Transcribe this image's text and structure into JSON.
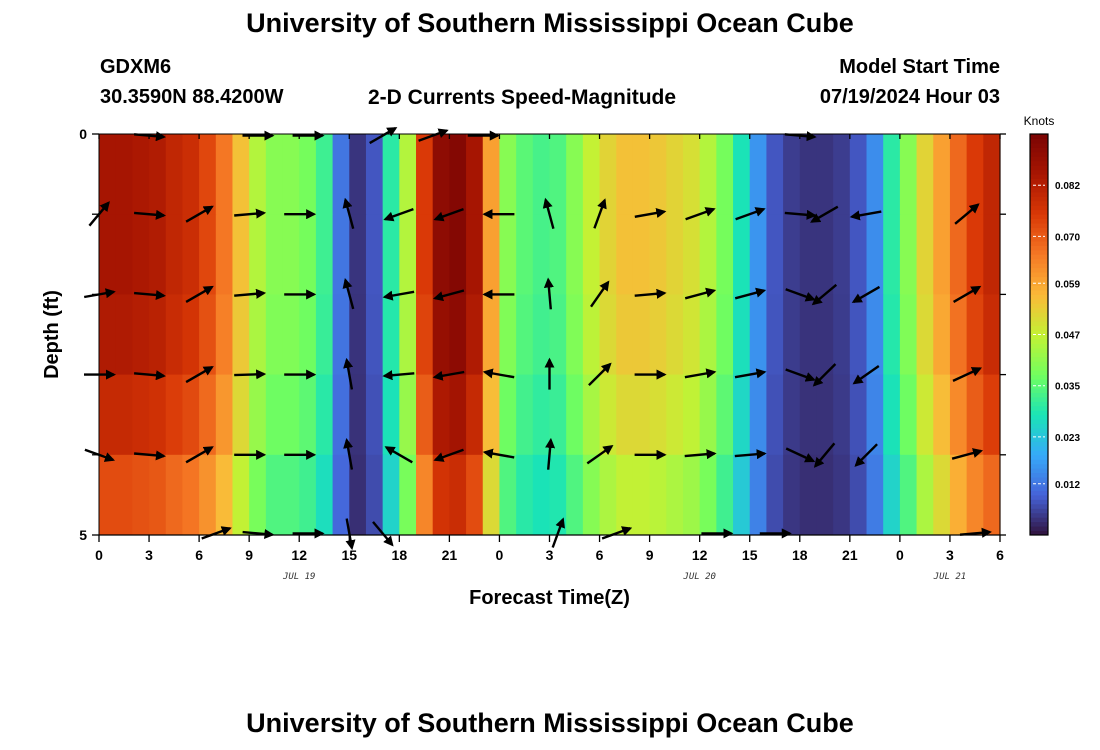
{
  "header": {
    "title": "University of Southern Mississippi Ocean Cube",
    "station": "GDXM6",
    "coords": "30.3590N  88.4200W",
    "plot_title": "2-D Currents Speed-Magnitude",
    "model_label": "Model Start Time",
    "model_time": "07/19/2024 Hour 03"
  },
  "footer": {
    "title": "University of Southern Mississippi Ocean Cube"
  },
  "chart_data": {
    "type": "heatmap",
    "title": "2-D Currents Speed-Magnitude",
    "xlabel": "Forecast Time(Z)",
    "ylabel": "Depth (ft)",
    "x_tick_labels": [
      "0",
      "3",
      "6",
      "9",
      "12",
      "15",
      "18",
      "21",
      "0",
      "3",
      "6",
      "9",
      "12",
      "15",
      "18",
      "21",
      "0",
      "3",
      "6"
    ],
    "date_labels": [
      {
        "text": "JUL 19",
        "tick_index": 4
      },
      {
        "text": "JUL 20",
        "tick_index": 12
      },
      {
        "text": "JUL 21",
        "tick_index": 17
      }
    ],
    "y_tick_labels": [
      "0",
      "5"
    ],
    "ylim": [
      0,
      5
    ],
    "x_hours_range": [
      0,
      54
    ],
    "colorbar": {
      "unit": "Knots",
      "min": 0.0,
      "max": 0.094,
      "tick_labels": [
        "0.082",
        "0.070",
        "0.059",
        "0.047",
        "0.035",
        "0.023",
        "0.012"
      ],
      "tick_values": [
        0.082,
        0.07,
        0.059,
        0.047,
        0.035,
        0.023,
        0.012
      ]
    },
    "speed_by_hour": [
      0.085,
      0.085,
      0.084,
      0.083,
      0.08,
      0.078,
      0.073,
      0.066,
      0.055,
      0.045,
      0.04,
      0.04,
      0.038,
      0.032,
      0.012,
      0.004,
      0.008,
      0.03,
      0.045,
      0.075,
      0.09,
      0.092,
      0.085,
      0.06,
      0.04,
      0.035,
      0.033,
      0.034,
      0.04,
      0.047,
      0.052,
      0.055,
      0.055,
      0.054,
      0.052,
      0.05,
      0.045,
      0.038,
      0.028,
      0.016,
      0.008,
      0.005,
      0.004,
      0.004,
      0.005,
      0.008,
      0.015,
      0.03,
      0.04,
      0.052,
      0.06,
      0.068,
      0.075,
      0.08
    ],
    "depth_factor": [
      1.0,
      1.0,
      0.98,
      0.93,
      0.85
    ],
    "vector_depths": [
      1,
      2,
      3,
      4
    ],
    "vectors": [
      {
        "h": 0,
        "dirs": [
          40,
          80,
          90,
          110
        ]
      },
      {
        "h": 3,
        "dirs": [
          95,
          95,
          95,
          95
        ]
      },
      {
        "h": 6,
        "dirs": [
          60,
          60,
          60,
          60
        ]
      },
      {
        "h": 9,
        "dirs": [
          85,
          85,
          88,
          90
        ]
      },
      {
        "h": 12,
        "dirs": [
          90,
          90,
          90,
          90
        ]
      },
      {
        "h": 15,
        "dirs": [
          -15,
          -15,
          -10,
          -10
        ]
      },
      {
        "h": 18,
        "dirs": [
          -110,
          -100,
          -95,
          -60
        ]
      },
      {
        "h": 21,
        "dirs": [
          -110,
          -105,
          -100,
          -110
        ]
      },
      {
        "h": 24,
        "dirs": [
          -90,
          -90,
          -80,
          -80
        ]
      },
      {
        "h": 27,
        "dirs": [
          -15,
          -5,
          0,
          5
        ]
      },
      {
        "h": 30,
        "dirs": [
          20,
          35,
          45,
          55
        ]
      },
      {
        "h": 33,
        "dirs": [
          80,
          85,
          90,
          90
        ]
      },
      {
        "h": 36,
        "dirs": [
          70,
          75,
          80,
          85
        ]
      },
      {
        "h": 39,
        "dirs": [
          70,
          75,
          80,
          85
        ]
      },
      {
        "h": 42,
        "dirs": [
          95,
          110,
          110,
          115
        ]
      },
      {
        "h": 43.5,
        "dirs": [
          -120,
          -130,
          -135,
          -140
        ]
      },
      {
        "h": 46,
        "dirs": [
          -100,
          -120,
          -125,
          -135
        ]
      },
      {
        "h": 52,
        "dirs": [
          50,
          60,
          65,
          75
        ]
      }
    ],
    "sparse_vectors_top": [
      {
        "h": 3,
        "dir": 95
      },
      {
        "h": 9.5,
        "dir": 90
      },
      {
        "h": 12.5,
        "dir": 90
      },
      {
        "h": 17,
        "dir": 60
      },
      {
        "h": 20,
        "dir": 70
      },
      {
        "h": 23,
        "dir": 90
      },
      {
        "h": 42,
        "dir": 95
      }
    ],
    "sparse_vectors_bottom": [
      {
        "h": 7,
        "dir": 70
      },
      {
        "h": 9.5,
        "dir": 95
      },
      {
        "h": 12.5,
        "dir": 90
      },
      {
        "h": 15,
        "dir": 170
      },
      {
        "h": 17,
        "dir": 140
      },
      {
        "h": 27.5,
        "dir": 20
      },
      {
        "h": 31,
        "dir": 70
      },
      {
        "h": 37,
        "dir": 90
      },
      {
        "h": 40.5,
        "dir": 90
      },
      {
        "h": 52.5,
        "dir": 85
      }
    ]
  }
}
